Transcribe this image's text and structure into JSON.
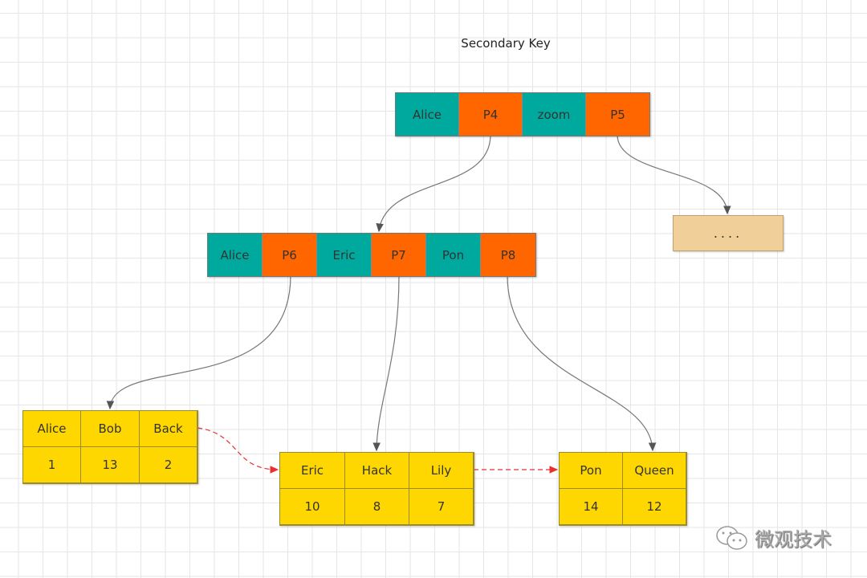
{
  "title": "Secondary Key",
  "colors": {
    "key": "#00a99d",
    "pointer": "#ff6600",
    "leaf": "#ffd700",
    "ellipsis_node": "#f0d098",
    "link": "#e83030"
  },
  "root": [
    "Alice",
    "P4",
    "zoom",
    "P5"
  ],
  "middle": [
    "Alice",
    "P6",
    "Eric",
    "P7",
    "Pon",
    "P8"
  ],
  "ellipsis": "....",
  "leaves": [
    {
      "keys": [
        "Alice",
        "Bob",
        "Back"
      ],
      "values": [
        "1",
        "13",
        "2"
      ]
    },
    {
      "keys": [
        "Eric",
        "Hack",
        "Lily"
      ],
      "values": [
        "10",
        "8",
        "7"
      ]
    },
    {
      "keys": [
        "Pon",
        "Queen"
      ],
      "values": [
        "14",
        "12"
      ]
    }
  ],
  "watermark": "微观技术"
}
